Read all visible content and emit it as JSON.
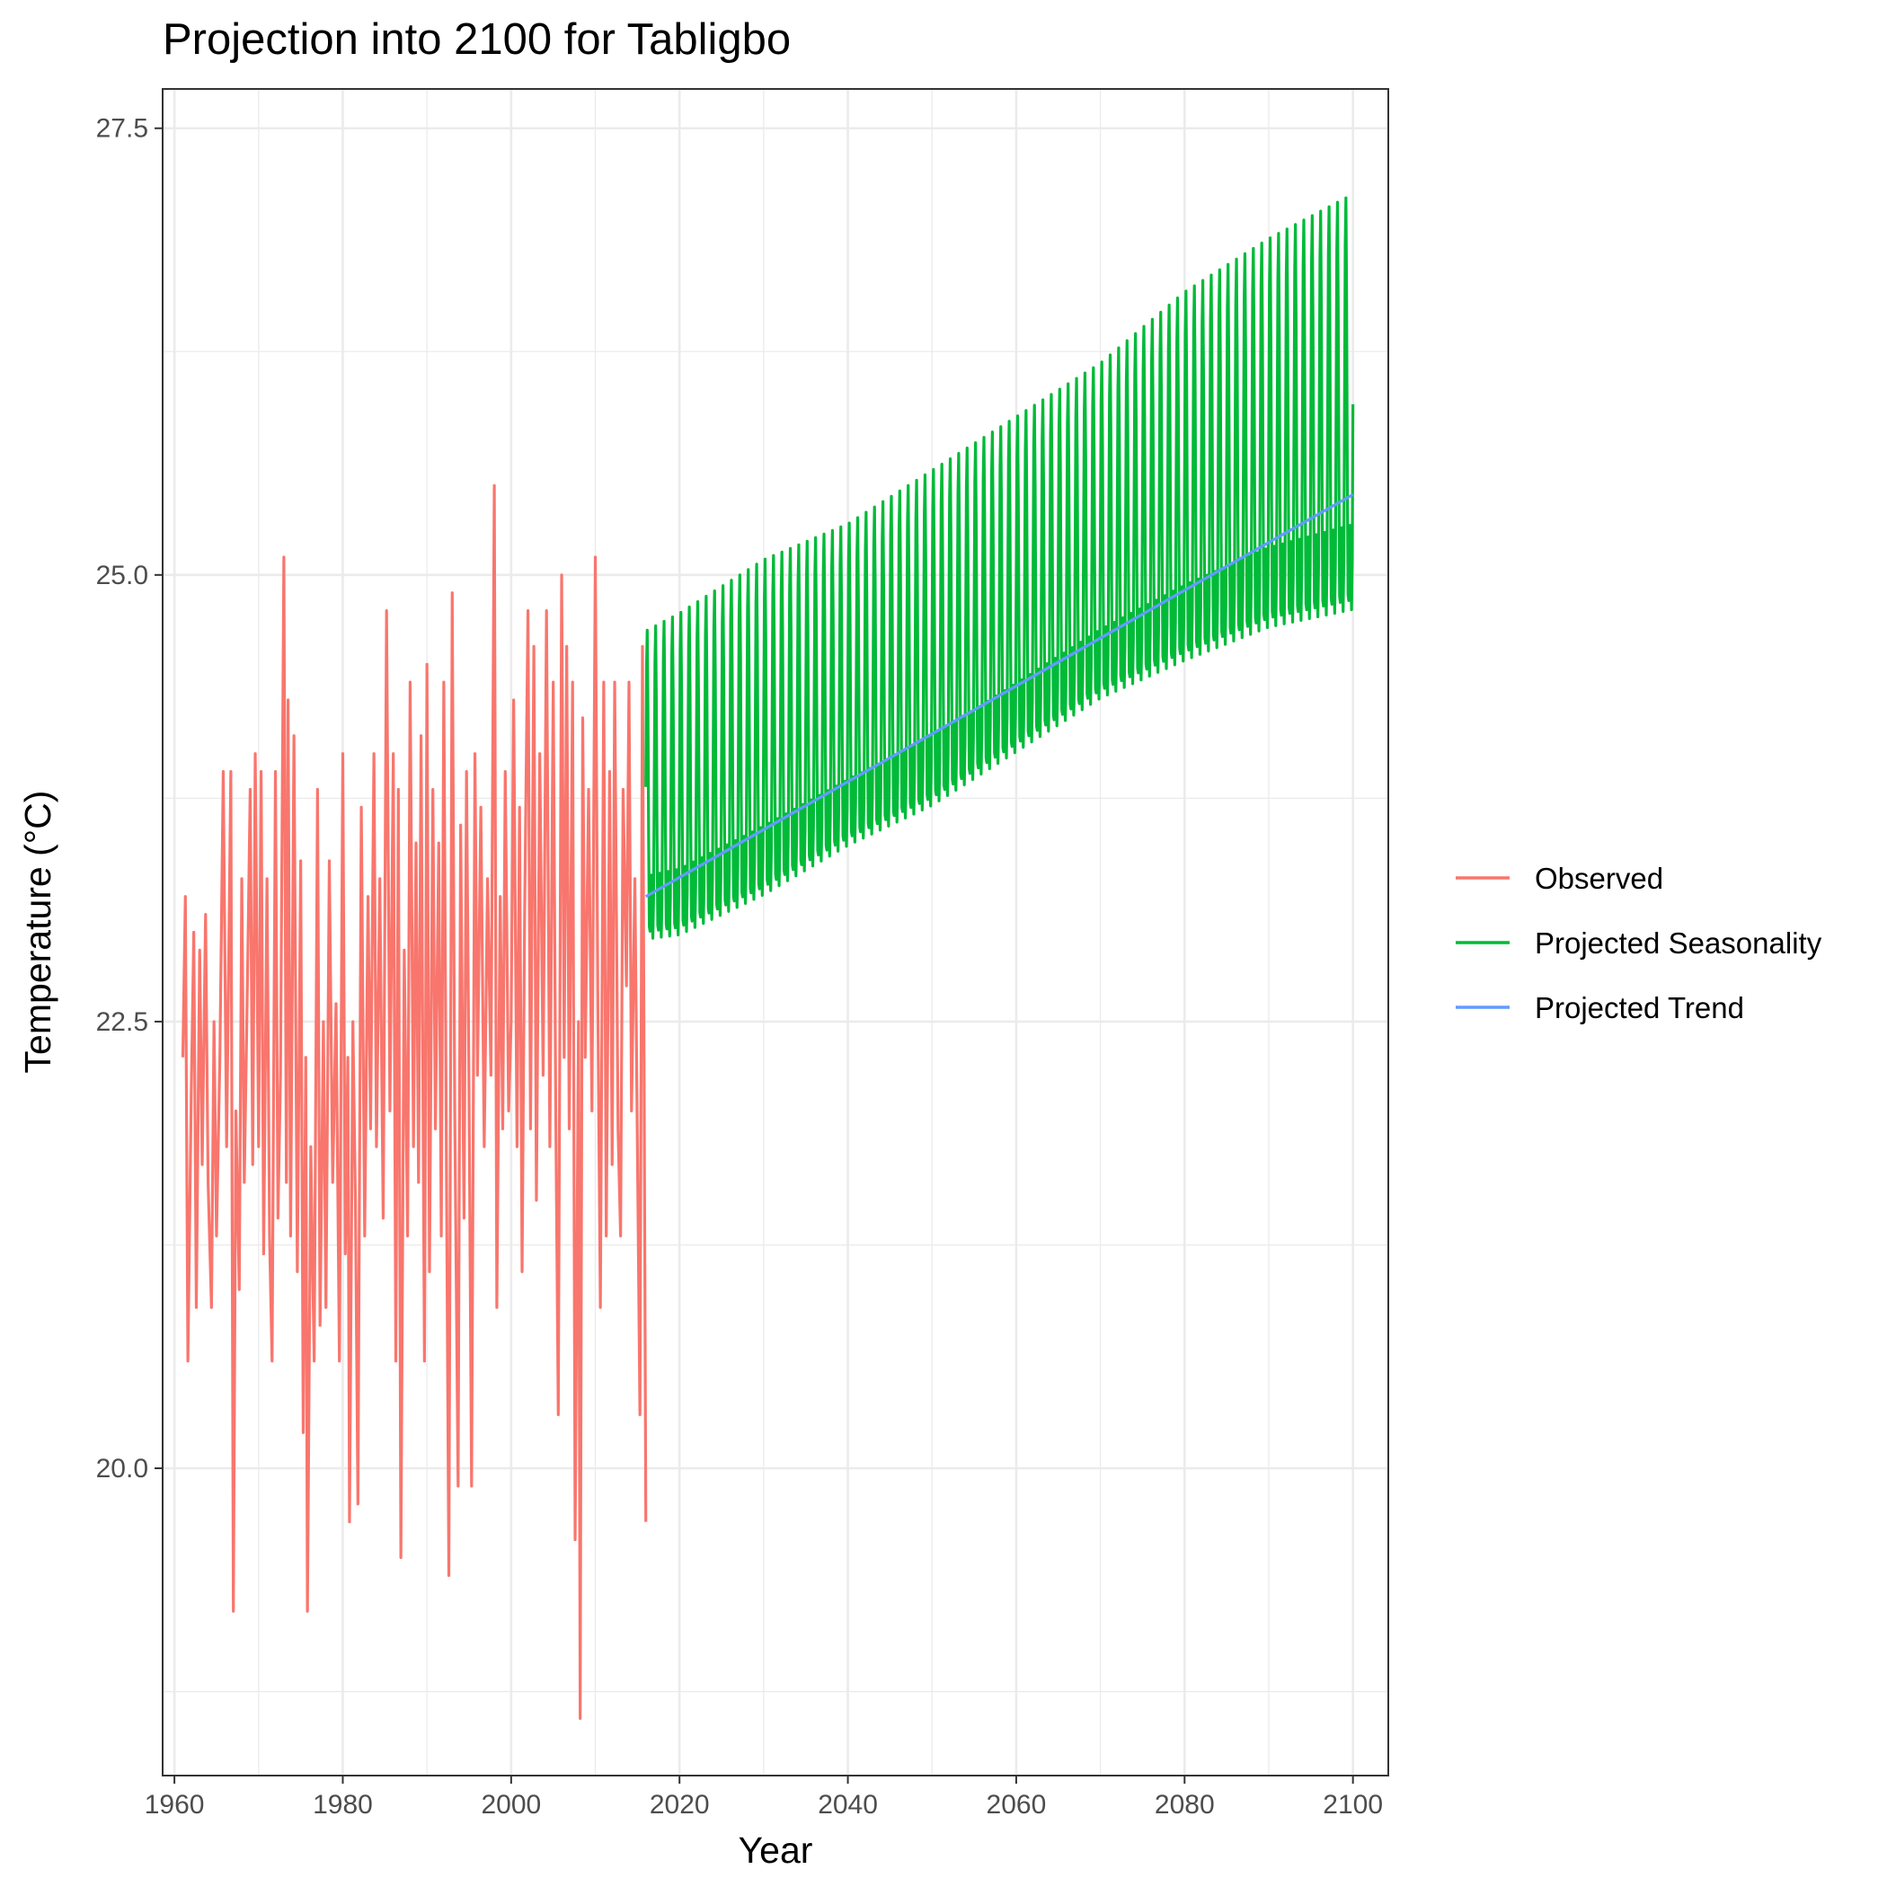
{
  "chart_data": {
    "type": "line",
    "title": "Projection into 2100 for Tabligbo",
    "xlabel": "Year",
    "ylabel": "Temperature (°C)",
    "xlim": [
      1958.6,
      2104.2
    ],
    "ylim": [
      18.28,
      27.72
    ],
    "x_ticks": [
      1960,
      1980,
      2000,
      2020,
      2040,
      2060,
      2080,
      2100
    ],
    "x_tick_labels": [
      "1960",
      "1980",
      "2000",
      "2020",
      "2040",
      "2060",
      "2080",
      "2100"
    ],
    "y_ticks": [
      20.0,
      22.5,
      25.0,
      27.5
    ],
    "y_tick_labels": [
      "20.0",
      "22.5",
      "25.0",
      "27.5"
    ],
    "grid": true,
    "legend_position": "right",
    "series": [
      {
        "name": "Observed",
        "color": "#f8766d",
        "time_resolution": "monthly",
        "x_start": 1961.0,
        "x_end": 2016.0,
        "points": [
          [
            1961.0,
            22.3
          ],
          [
            1961.3,
            23.2
          ],
          [
            1961.6,
            20.6
          ],
          [
            1962.0,
            22.1
          ],
          [
            1962.3,
            23.0
          ],
          [
            1962.6,
            20.9
          ],
          [
            1963.0,
            22.9
          ],
          [
            1963.3,
            21.7
          ],
          [
            1963.7,
            23.1
          ],
          [
            1964.0,
            21.6
          ],
          [
            1964.4,
            20.9
          ],
          [
            1964.7,
            22.5
          ],
          [
            1965.0,
            21.3
          ],
          [
            1965.4,
            22.3
          ],
          [
            1965.8,
            23.9
          ],
          [
            1966.2,
            21.8
          ],
          [
            1966.7,
            23.9
          ],
          [
            1967.0,
            19.2
          ],
          [
            1967.3,
            22.0
          ],
          [
            1967.7,
            21.0
          ],
          [
            1968.0,
            23.3
          ],
          [
            1968.3,
            21.6
          ],
          [
            1968.7,
            22.8
          ],
          [
            1969.0,
            23.8
          ],
          [
            1969.3,
            21.7
          ],
          [
            1969.6,
            24.0
          ],
          [
            1970.0,
            21.8
          ],
          [
            1970.3,
            23.9
          ],
          [
            1970.6,
            21.2
          ],
          [
            1971.0,
            23.3
          ],
          [
            1971.3,
            21.3
          ],
          [
            1971.6,
            20.6
          ],
          [
            1972.0,
            23.9
          ],
          [
            1972.3,
            21.4
          ],
          [
            1972.6,
            22.2
          ],
          [
            1973.0,
            25.1
          ],
          [
            1973.3,
            21.6
          ],
          [
            1973.5,
            24.3
          ],
          [
            1973.8,
            21.3
          ],
          [
            1974.2,
            24.1
          ],
          [
            1974.6,
            21.1
          ],
          [
            1975.0,
            23.4
          ],
          [
            1975.3,
            20.2
          ],
          [
            1975.6,
            22.3
          ],
          [
            1975.8,
            19.2
          ],
          [
            1976.2,
            21.8
          ],
          [
            1976.6,
            20.6
          ],
          [
            1977.0,
            23.8
          ],
          [
            1977.3,
            20.8
          ],
          [
            1977.7,
            22.5
          ],
          [
            1978.0,
            20.9
          ],
          [
            1978.4,
            23.4
          ],
          [
            1978.8,
            21.6
          ],
          [
            1979.2,
            22.6
          ],
          [
            1979.6,
            20.6
          ],
          [
            1980.0,
            24.0
          ],
          [
            1980.3,
            21.2
          ],
          [
            1980.6,
            22.3
          ],
          [
            1980.8,
            19.7
          ],
          [
            1981.2,
            22.5
          ],
          [
            1981.5,
            21.5
          ],
          [
            1981.8,
            19.8
          ],
          [
            1982.2,
            23.7
          ],
          [
            1982.6,
            21.3
          ],
          [
            1983.0,
            23.2
          ],
          [
            1983.3,
            21.9
          ],
          [
            1983.7,
            24.0
          ],
          [
            1984.0,
            21.8
          ],
          [
            1984.4,
            23.3
          ],
          [
            1984.8,
            21.4
          ],
          [
            1985.2,
            24.8
          ],
          [
            1985.6,
            22.0
          ],
          [
            1986.0,
            24.0
          ],
          [
            1986.3,
            20.6
          ],
          [
            1986.6,
            23.8
          ],
          [
            1986.9,
            19.5
          ],
          [
            1987.3,
            22.9
          ],
          [
            1987.7,
            21.3
          ],
          [
            1988.0,
            24.4
          ],
          [
            1988.4,
            21.8
          ],
          [
            1988.7,
            23.5
          ],
          [
            1989.0,
            21.6
          ],
          [
            1989.3,
            24.1
          ],
          [
            1989.7,
            20.6
          ],
          [
            1990.0,
            24.5
          ],
          [
            1990.3,
            21.1
          ],
          [
            1990.7,
            23.8
          ],
          [
            1991.0,
            21.9
          ],
          [
            1991.4,
            23.5
          ],
          [
            1991.7,
            21.3
          ],
          [
            1992.0,
            24.4
          ],
          [
            1992.3,
            21.8
          ],
          [
            1992.6,
            19.4
          ],
          [
            1993.0,
            24.9
          ],
          [
            1993.3,
            22.0
          ],
          [
            1993.7,
            19.9
          ],
          [
            1994.0,
            23.6
          ],
          [
            1994.4,
            21.4
          ],
          [
            1994.7,
            23.9
          ],
          [
            1995.0,
            22.1
          ],
          [
            1995.3,
            19.9
          ],
          [
            1995.7,
            24.0
          ],
          [
            1996.0,
            22.2
          ],
          [
            1996.4,
            23.7
          ],
          [
            1996.8,
            21.8
          ],
          [
            1997.2,
            23.3
          ],
          [
            1997.6,
            22.2
          ],
          [
            1998.0,
            25.5
          ],
          [
            1998.3,
            20.9
          ],
          [
            1998.7,
            23.2
          ],
          [
            1999.0,
            21.9
          ],
          [
            1999.3,
            23.9
          ],
          [
            1999.7,
            22.0
          ],
          [
            2000.0,
            22.5
          ],
          [
            2000.3,
            24.3
          ],
          [
            2000.7,
            21.8
          ],
          [
            2001.0,
            23.7
          ],
          [
            2001.3,
            21.1
          ],
          [
            2001.6,
            23.1
          ],
          [
            2002.0,
            24.8
          ],
          [
            2002.3,
            21.9
          ],
          [
            2002.7,
            24.6
          ],
          [
            2003.0,
            21.5
          ],
          [
            2003.4,
            24.0
          ],
          [
            2003.8,
            22.2
          ],
          [
            2004.2,
            24.8
          ],
          [
            2004.6,
            21.8
          ],
          [
            2005.0,
            24.4
          ],
          [
            2005.3,
            22.0
          ],
          [
            2005.6,
            20.3
          ],
          [
            2006.0,
            25.0
          ],
          [
            2006.3,
            22.3
          ],
          [
            2006.6,
            24.6
          ],
          [
            2006.9,
            21.9
          ],
          [
            2007.3,
            24.4
          ],
          [
            2007.6,
            19.6
          ],
          [
            2008.0,
            22.5
          ],
          [
            2008.2,
            18.6
          ],
          [
            2008.5,
            24.2
          ],
          [
            2008.8,
            22.3
          ],
          [
            2009.2,
            23.8
          ],
          [
            2009.6,
            22.0
          ],
          [
            2010.0,
            25.1
          ],
          [
            2010.3,
            22.6
          ],
          [
            2010.6,
            20.9
          ],
          [
            2011.0,
            24.4
          ],
          [
            2011.3,
            21.3
          ],
          [
            2011.7,
            23.9
          ],
          [
            2012.0,
            21.7
          ],
          [
            2012.3,
            24.4
          ],
          [
            2012.7,
            21.9
          ],
          [
            2013.0,
            21.3
          ],
          [
            2013.3,
            23.8
          ],
          [
            2013.7,
            22.7
          ],
          [
            2014.0,
            24.4
          ],
          [
            2014.3,
            22.0
          ],
          [
            2014.7,
            23.3
          ],
          [
            2015.0,
            21.8
          ],
          [
            2015.3,
            20.3
          ],
          [
            2015.6,
            24.6
          ],
          [
            2016.0,
            19.7
          ]
        ]
      },
      {
        "name": "Projected Seasonality",
        "color": "#00ba38",
        "time_resolution": "monthly",
        "x_start": 2016.0,
        "x_end": 2100.0,
        "envelope": {
          "x": [
            2016,
            2020,
            2030,
            2040,
            2050,
            2060,
            2070,
            2080,
            2090,
            2100
          ],
          "max": [
            24.7,
            24.8,
            25.1,
            25.3,
            25.6,
            25.9,
            26.2,
            26.6,
            26.9,
            27.15
          ],
          "min": [
            22.4,
            22.4,
            22.6,
            22.9,
            23.1,
            23.4,
            23.7,
            23.85,
            24.0,
            24.05
          ]
        }
      },
      {
        "name": "Projected Trend",
        "color": "#619cff",
        "points": [
          [
            2016.0,
            23.2
          ],
          [
            2100.0,
            25.45
          ]
        ]
      }
    ]
  },
  "legend": {
    "items": [
      {
        "label": "Observed",
        "color": "#f8766d"
      },
      {
        "label": "Projected Seasonality",
        "color": "#00ba38"
      },
      {
        "label": "Projected Trend",
        "color": "#619cff"
      }
    ]
  }
}
